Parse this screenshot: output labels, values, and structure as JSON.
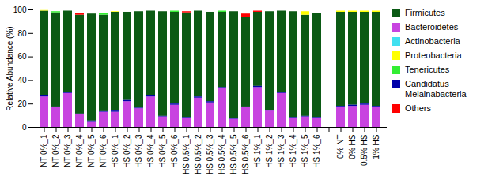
{
  "chart_data": {
    "type": "bar",
    "stacked": true,
    "legend": "right",
    "y_label": "Relative Abundance (%)",
    "ylim": [
      0,
      100
    ],
    "yticks": [
      0,
      20,
      40,
      60,
      80,
      100
    ],
    "categories": [
      "NT 0%_1",
      "NT 0%_2",
      "NT 0%_3",
      "NT 0%_4",
      "NT 0%_5",
      "NT 0%_6",
      "HS 0%_1",
      "HS 0%_2",
      "HS 0%_3",
      "HS 0%_4",
      "HS 0%_5",
      "HS 0%_6",
      "HS 0.5%_1",
      "HS 0.5%_2",
      "HS 0.5%_3",
      "HS 0.5%_4",
      "HS 0.5%_5",
      "HS 0.5%_6",
      "HS 1%_1",
      "HS 1%_2",
      "HS 1%_3",
      "HS 1%_4",
      "HS 1%_5",
      "HS 1%_6",
      null,
      "0% NT",
      "0% HS",
      "0.5% HS",
      "1% HS"
    ],
    "series": [
      {
        "name": "Firmicutes",
        "color": "#0b5a14",
        "values": [
          72,
          80,
          69,
          84,
          91,
          82,
          84,
          75,
          82,
          72,
          89,
          78,
          89,
          73,
          76,
          64,
          91,
          76,
          63,
          84,
          69,
          90,
          86,
          88.5,
          null,
          80,
          79,
          78,
          80
        ]
      },
      {
        "name": "Bacteroidetes",
        "color": "#c844e0",
        "values": [
          26,
          17,
          29,
          11,
          5,
          13,
          13,
          22,
          16,
          26,
          9,
          19,
          8,
          25,
          21,
          33,
          7,
          17,
          34,
          14,
          29,
          8,
          9,
          8,
          null,
          17,
          18,
          19,
          17
        ]
      },
      {
        "name": "Actinobacteria",
        "color": "#40e0f0",
        "values": [
          0,
          0,
          0,
          0,
          0,
          0,
          0,
          0,
          0,
          0,
          0,
          0,
          0,
          0,
          0,
          0,
          0,
          0,
          0,
          0,
          0,
          0,
          0,
          0,
          null,
          0,
          0,
          0,
          0
        ]
      },
      {
        "name": "Proteobacteria",
        "color": "#ffff00",
        "values": [
          0.5,
          0,
          0,
          0,
          0,
          0,
          0.5,
          0,
          0,
          0,
          0,
          0,
          0,
          0,
          0,
          0,
          0,
          0,
          0,
          0,
          0,
          0,
          3,
          0,
          null,
          1,
          1,
          1,
          1
        ]
      },
      {
        "name": "Tenericutes",
        "color": "#33ee33",
        "values": [
          0,
          1,
          0,
          0,
          0,
          1.5,
          0,
          0,
          0,
          0,
          0,
          1,
          0,
          0,
          0,
          1,
          0,
          0,
          0,
          0,
          0,
          0,
          0,
          0,
          null,
          0,
          0,
          0,
          0
        ]
      },
      {
        "name": "Candidatus Melainabacteria",
        "color": "#0000aa",
        "values": [
          1,
          0.5,
          1,
          0.5,
          0.5,
          0.5,
          1,
          1,
          0.5,
          1,
          0.5,
          1,
          0.5,
          1,
          1,
          1,
          0.5,
          0.5,
          1,
          0.5,
          1,
          0.5,
          0.5,
          0.5,
          null,
          1,
          1,
          1,
          1
        ]
      },
      {
        "name": "Others",
        "color": "#ff0000",
        "values": [
          0,
          0,
          0,
          1.5,
          0,
          0,
          0,
          0,
          0,
          0,
          0,
          0,
          1,
          0,
          0,
          0,
          0,
          3,
          1,
          0,
          0,
          0,
          0,
          0,
          null,
          0,
          0,
          0,
          0
        ]
      }
    ]
  }
}
